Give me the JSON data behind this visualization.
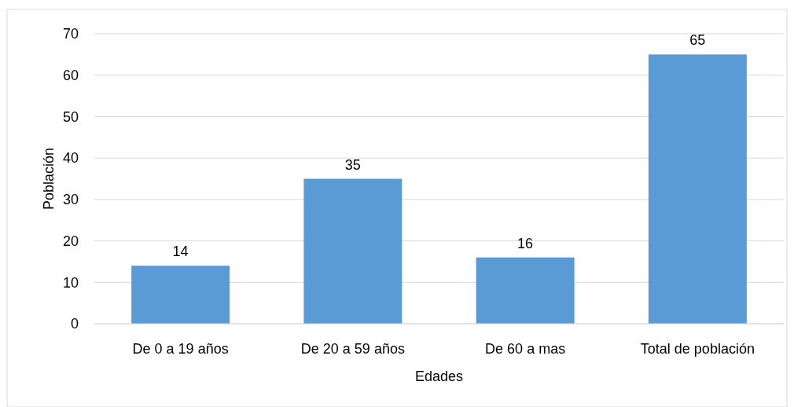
{
  "chart_data": {
    "type": "bar",
    "xlabel": "Edades",
    "ylabel": "Población",
    "categories": [
      "De 0 a 19 años",
      "De 20 a 59 años",
      "De 60 a mas",
      "Total de población"
    ],
    "values": [
      14,
      35,
      16,
      65
    ],
    "color": "#5b9bd5",
    "ylim": [
      0,
      70
    ],
    "yticks": [
      0,
      10,
      20,
      30,
      40,
      50,
      60,
      70
    ],
    "grid": "y",
    "data_labels": true
  }
}
